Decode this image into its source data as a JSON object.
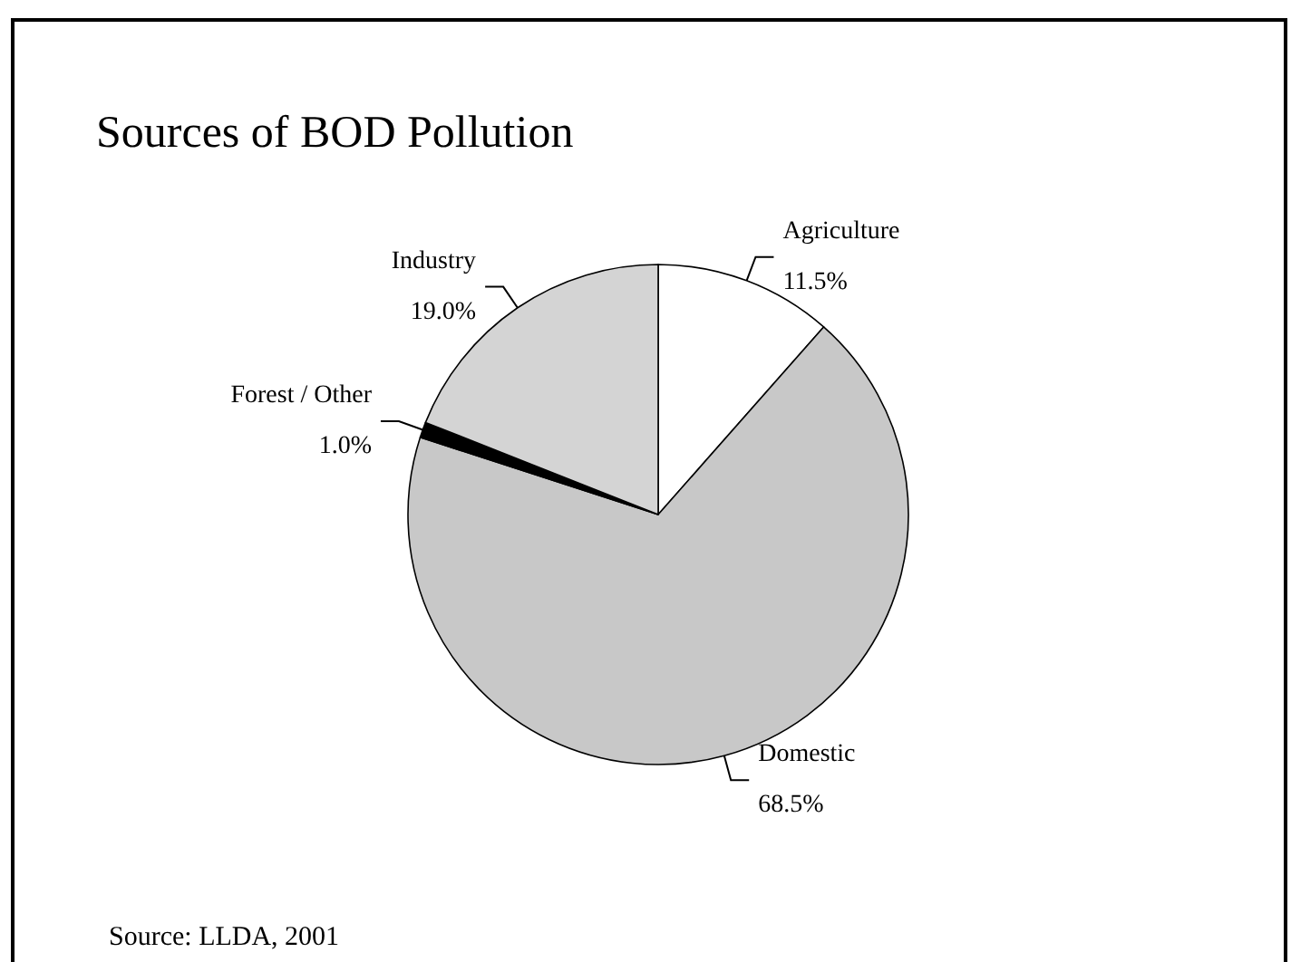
{
  "chart_data": {
    "type": "pie",
    "title": "Sources of BOD Pollution",
    "categories": [
      "Agriculture",
      "Domestic",
      "Forest / Other",
      "Industry"
    ],
    "values": [
      11.5,
      68.5,
      1.0,
      19.0
    ],
    "colors": [
      "#ffffff",
      "#c8c8c8",
      "#000000",
      "#d4d4d4"
    ],
    "value_labels": [
      "11.5%",
      "68.5%",
      "1.0%",
      "19.0%"
    ],
    "legend": false,
    "annotations": [
      "Source: LLDA, 2001"
    ]
  }
}
